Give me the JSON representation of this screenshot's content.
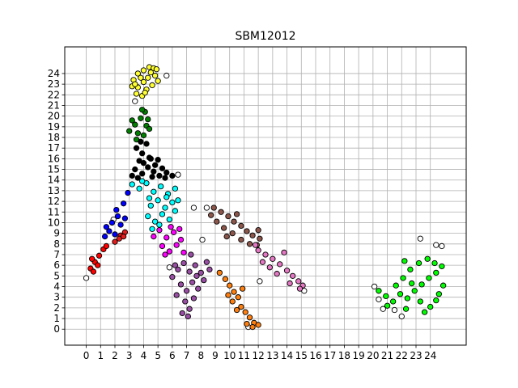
{
  "chart_data": {
    "type": "scatter",
    "title": "SBM12012",
    "xlabel": "",
    "ylabel": "",
    "xlim": [
      -1.5,
      26.5
    ],
    "ylim": [
      -1.5,
      26.5
    ],
    "x_ticks": [
      "0",
      "1",
      "2",
      "3",
      "4",
      "5",
      "6",
      "7",
      "8",
      "9",
      "10",
      "11",
      "12",
      "13",
      "14",
      "15",
      "16",
      "17",
      "18",
      "19",
      "20",
      "21",
      "22",
      "23",
      "24"
    ],
    "y_ticks": [
      "0",
      "1",
      "2",
      "3",
      "4",
      "5",
      "6",
      "7",
      "8",
      "9",
      "10",
      "11",
      "12",
      "13",
      "14",
      "15",
      "16",
      "17",
      "18",
      "19",
      "20",
      "21",
      "22",
      "23",
      "24"
    ],
    "grid": true,
    "legend": "none",
    "marker_edge_color": "#000000",
    "series": [
      {
        "color": "#ffff33",
        "points": [
          [
            3.3,
            23.4
          ],
          [
            3.6,
            24.0
          ],
          [
            4.0,
            24.3
          ],
          [
            4.4,
            24.6
          ],
          [
            4.7,
            24.5
          ],
          [
            3.2,
            22.8
          ],
          [
            3.6,
            22.7
          ],
          [
            4.0,
            23.2
          ],
          [
            4.3,
            23.6
          ],
          [
            4.8,
            23.8
          ],
          [
            3.5,
            22.1
          ],
          [
            3.9,
            21.9
          ],
          [
            4.2,
            22.5
          ],
          [
            4.6,
            22.9
          ],
          [
            5.0,
            23.3
          ],
          [
            3.8,
            23.6
          ],
          [
            4.5,
            24.1
          ],
          [
            3.4,
            23.0
          ],
          [
            4.1,
            22.2
          ],
          [
            4.9,
            24.4
          ]
        ]
      },
      {
        "color": "#008000",
        "points": [
          [
            3.0,
            18.6
          ],
          [
            3.4,
            19.2
          ],
          [
            3.8,
            19.8
          ],
          [
            4.1,
            20.4
          ],
          [
            3.6,
            18.4
          ],
          [
            4.2,
            19.1
          ],
          [
            3.2,
            19.6
          ],
          [
            4.4,
            18.8
          ],
          [
            3.9,
            20.6
          ],
          [
            4.0,
            18.2
          ],
          [
            3.5,
            17.8
          ],
          [
            4.3,
            19.7
          ]
        ]
      },
      {
        "color": "#000000",
        "points": [
          [
            3.5,
            17.0
          ],
          [
            3.9,
            16.5
          ],
          [
            4.2,
            17.4
          ],
          [
            3.7,
            15.8
          ],
          [
            4.4,
            16.1
          ],
          [
            4.8,
            15.4
          ],
          [
            5.3,
            15.1
          ],
          [
            3.4,
            15.0
          ],
          [
            3.9,
            14.6
          ],
          [
            4.3,
            15.2
          ],
          [
            4.7,
            14.8
          ],
          [
            5.1,
            14.4
          ],
          [
            5.6,
            14.7
          ],
          [
            6.0,
            14.4
          ],
          [
            3.2,
            14.4
          ],
          [
            3.6,
            14.2
          ],
          [
            4.0,
            15.6
          ],
          [
            4.5,
            16.0
          ],
          [
            5.0,
            15.9
          ],
          [
            3.8,
            17.6
          ],
          [
            4.6,
            14.3
          ],
          [
            5.5,
            14.2
          ]
        ]
      },
      {
        "color": "#00ffff",
        "points": [
          [
            3.2,
            13.6
          ],
          [
            3.7,
            13.2
          ],
          [
            4.2,
            13.7
          ],
          [
            4.7,
            12.9
          ],
          [
            5.2,
            13.4
          ],
          [
            5.7,
            12.7
          ],
          [
            6.2,
            13.2
          ],
          [
            4.5,
            11.6
          ],
          [
            5.0,
            12.1
          ],
          [
            5.5,
            11.4
          ],
          [
            6.0,
            11.9
          ],
          [
            4.3,
            10.6
          ],
          [
            4.8,
            10.1
          ],
          [
            5.3,
            10.8
          ],
          [
            5.8,
            10.3
          ],
          [
            6.2,
            11.1
          ],
          [
            4.6,
            9.4
          ],
          [
            5.1,
            9.8
          ],
          [
            5.6,
            12.4
          ],
          [
            6.4,
            12.1
          ],
          [
            3.9,
            13.9
          ],
          [
            4.4,
            12.3
          ]
        ]
      },
      {
        "color": "#0000ff",
        "points": [
          [
            1.4,
            9.6
          ],
          [
            1.8,
            10.0
          ],
          [
            2.2,
            10.6
          ],
          [
            2.6,
            11.8
          ],
          [
            2.9,
            12.8
          ],
          [
            1.6,
            9.2
          ],
          [
            2.0,
            8.9
          ],
          [
            2.4,
            9.8
          ],
          [
            2.7,
            10.4
          ],
          [
            1.3,
            8.7
          ],
          [
            2.1,
            11.2
          ]
        ]
      },
      {
        "color": "#ff0000",
        "points": [
          [
            0.3,
            5.7
          ],
          [
            0.6,
            6.3
          ],
          [
            0.9,
            6.9
          ],
          [
            1.2,
            7.5
          ],
          [
            0.5,
            5.4
          ],
          [
            0.8,
            6.0
          ],
          [
            1.4,
            7.8
          ],
          [
            0.4,
            6.6
          ]
        ]
      },
      {
        "color": "#e41a1c",
        "points": [
          [
            2.0,
            8.2
          ],
          [
            2.4,
            8.8
          ],
          [
            2.7,
            9.1
          ],
          [
            2.3,
            8.5
          ],
          [
            2.6,
            8.7
          ]
        ]
      },
      {
        "color": "#ff00ff",
        "points": [
          [
            4.7,
            8.7
          ],
          [
            5.1,
            9.3
          ],
          [
            5.6,
            8.6
          ],
          [
            6.1,
            9.1
          ],
          [
            6.6,
            8.4
          ],
          [
            5.3,
            7.8
          ],
          [
            5.8,
            7.3
          ],
          [
            6.3,
            7.9
          ],
          [
            6.8,
            7.2
          ],
          [
            5.9,
            9.6
          ],
          [
            6.5,
            9.4
          ],
          [
            5.5,
            7.0
          ]
        ]
      },
      {
        "color": "#984ea3",
        "points": [
          [
            6.0,
            4.9
          ],
          [
            6.4,
            5.6
          ],
          [
            6.8,
            6.2
          ],
          [
            7.2,
            5.4
          ],
          [
            7.6,
            6.0
          ],
          [
            8.0,
            5.3
          ],
          [
            8.4,
            6.3
          ],
          [
            6.6,
            4.2
          ],
          [
            7.0,
            3.6
          ],
          [
            7.4,
            4.4
          ],
          [
            7.8,
            3.8
          ],
          [
            6.3,
            3.2
          ],
          [
            6.9,
            2.6
          ],
          [
            7.2,
            1.9
          ],
          [
            7.5,
            2.9
          ],
          [
            6.7,
            1.5
          ],
          [
            7.1,
            1.2
          ],
          [
            8.2,
            4.6
          ],
          [
            7.7,
            5.0
          ],
          [
            6.2,
            6.0
          ],
          [
            8.6,
            5.6
          ],
          [
            7.3,
            7.0
          ]
        ]
      },
      {
        "color": "#ff7f0e",
        "points": [
          [
            9.3,
            5.3
          ],
          [
            9.7,
            4.7
          ],
          [
            10.0,
            4.1
          ],
          [
            10.3,
            3.5
          ],
          [
            10.6,
            3.0
          ],
          [
            10.2,
            2.6
          ],
          [
            10.8,
            2.1
          ],
          [
            11.1,
            1.6
          ],
          [
            11.4,
            1.1
          ],
          [
            11.7,
            0.6
          ],
          [
            12.0,
            0.4
          ],
          [
            11.6,
            0.2
          ],
          [
            11.2,
            0.5
          ],
          [
            10.5,
            1.8
          ],
          [
            9.9,
            3.2
          ],
          [
            10.9,
            3.8
          ]
        ]
      },
      {
        "color": "#8c564b",
        "points": [
          [
            8.9,
            11.4
          ],
          [
            9.4,
            11.0
          ],
          [
            9.9,
            10.6
          ],
          [
            10.3,
            10.1
          ],
          [
            10.8,
            9.7
          ],
          [
            11.2,
            9.2
          ],
          [
            11.6,
            8.8
          ],
          [
            12.0,
            9.3
          ],
          [
            11.4,
            8.0
          ],
          [
            10.8,
            8.4
          ],
          [
            10.2,
            9.0
          ],
          [
            9.6,
            9.5
          ],
          [
            9.1,
            10.1
          ],
          [
            8.7,
            10.7
          ],
          [
            11.9,
            7.9
          ],
          [
            10.5,
            10.8
          ],
          [
            9.8,
            8.7
          ],
          [
            12.1,
            8.5
          ]
        ]
      },
      {
        "color": "#e377c2",
        "points": [
          [
            12.0,
            7.4
          ],
          [
            12.5,
            7.0
          ],
          [
            13.0,
            6.6
          ],
          [
            13.5,
            6.1
          ],
          [
            14.0,
            5.5
          ],
          [
            14.4,
            5.0
          ],
          [
            14.8,
            4.5
          ],
          [
            15.1,
            4.1
          ],
          [
            12.8,
            5.8
          ],
          [
            13.8,
            7.2
          ],
          [
            13.3,
            5.2
          ],
          [
            14.2,
            4.3
          ],
          [
            11.8,
            7.9
          ],
          [
            12.3,
            6.3
          ],
          [
            14.9,
            3.8
          ]
        ]
      },
      {
        "color": "#00ff00",
        "points": [
          [
            20.4,
            3.6
          ],
          [
            20.9,
            3.1
          ],
          [
            21.4,
            2.6
          ],
          [
            21.9,
            3.3
          ],
          [
            22.4,
            2.9
          ],
          [
            22.9,
            3.6
          ],
          [
            23.4,
            4.2
          ],
          [
            23.9,
            4.8
          ],
          [
            24.4,
            5.3
          ],
          [
            24.8,
            5.9
          ],
          [
            22.6,
            5.6
          ],
          [
            23.2,
            6.2
          ],
          [
            23.8,
            6.6
          ],
          [
            24.3,
            6.2
          ],
          [
            22.1,
            4.8
          ],
          [
            22.7,
            4.3
          ],
          [
            23.3,
            2.6
          ],
          [
            24.0,
            2.1
          ],
          [
            24.6,
            3.3
          ],
          [
            24.9,
            4.1
          ],
          [
            21.6,
            4.1
          ],
          [
            22.3,
            1.9
          ],
          [
            23.6,
            1.6
          ],
          [
            21.0,
            2.2
          ],
          [
            22.2,
            6.4
          ],
          [
            24.4,
            2.7
          ]
        ]
      }
    ],
    "outlier_points": [
      [
        0.0,
        4.8
      ],
      [
        1.9,
        10.3
      ],
      [
        3.4,
        21.4
      ],
      [
        5.6,
        23.8
      ],
      [
        6.4,
        14.5
      ],
      [
        8.4,
        11.4
      ],
      [
        8.1,
        8.4
      ],
      [
        12.1,
        4.5
      ],
      [
        15.2,
        3.6
      ],
      [
        5.8,
        5.8
      ],
      [
        23.3,
        8.5
      ],
      [
        24.4,
        7.9
      ],
      [
        24.8,
        7.8
      ],
      [
        20.1,
        4.0
      ],
      [
        20.4,
        2.8
      ],
      [
        21.5,
        1.8
      ],
      [
        22.0,
        1.2
      ],
      [
        20.7,
        1.9
      ],
      [
        11.3,
        0.2
      ],
      [
        7.5,
        11.4
      ]
    ]
  }
}
